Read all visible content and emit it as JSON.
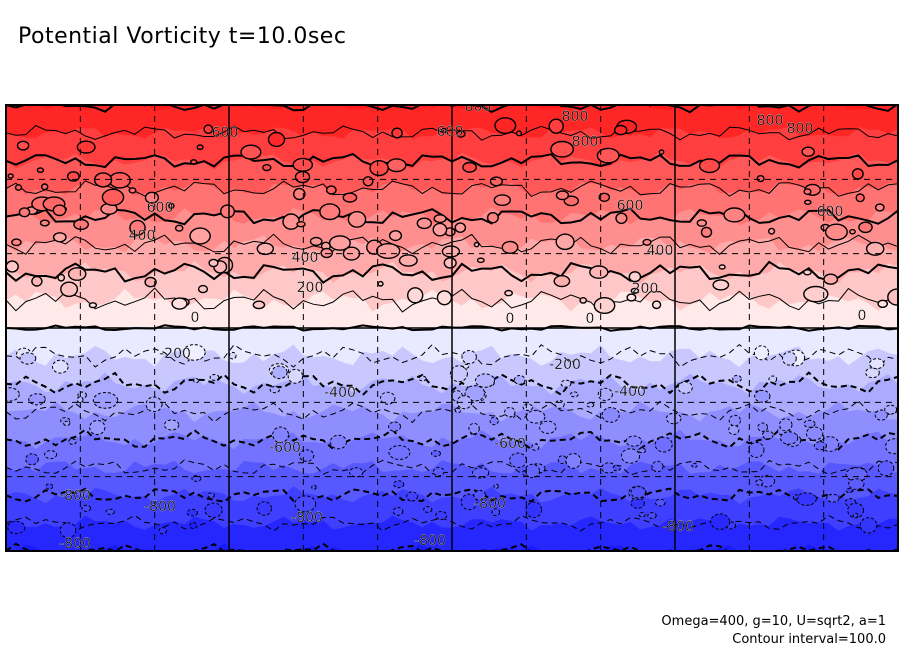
{
  "chart_data": {
    "type": "contour",
    "title": "Potential Vorticity t=10.0sec",
    "variable": "Potential Vorticity",
    "time": "t=10.0sec",
    "params": "Omega=400, g=10, U=sqrt2, a=1",
    "contour_interval_label": "Contour interval=100.0",
    "contour_interval": 100,
    "value_range": [
      -800,
      800
    ],
    "levels": [
      -800,
      -700,
      -600,
      -500,
      -400,
      -300,
      -200,
      -100,
      0,
      100,
      200,
      300,
      400,
      500,
      600,
      700,
      800
    ],
    "negative_levels_dashed": true,
    "colormap": {
      "negative": "#1a1aff",
      "zero": "#ffffff",
      "positive": "#ff1a1a"
    },
    "grid": true,
    "bands": [
      {
        "label": "800",
        "value": 800
      },
      {
        "label": "600",
        "value": 600
      },
      {
        "label": "400",
        "value": 400
      },
      {
        "label": "200",
        "value": 200
      },
      {
        "label": "0",
        "value": 0
      },
      {
        "label": "-200",
        "value": -200
      },
      {
        "label": "-400",
        "value": -400
      },
      {
        "label": "-600",
        "value": -600
      },
      {
        "label": "-800",
        "value": -800
      }
    ],
    "contour_labels": [
      "800",
      "800",
      "800",
      "800",
      "800",
      "600",
      "600",
      "600",
      "600",
      "600",
      "400",
      "400",
      "400",
      "200",
      "200",
      "0",
      "0",
      "0",
      "0",
      "-200",
      "-200",
      "-400",
      "-400",
      "-600",
      "-600",
      "-800",
      "-800",
      "-800",
      "-800",
      "-800",
      "-800",
      "-800"
    ]
  }
}
